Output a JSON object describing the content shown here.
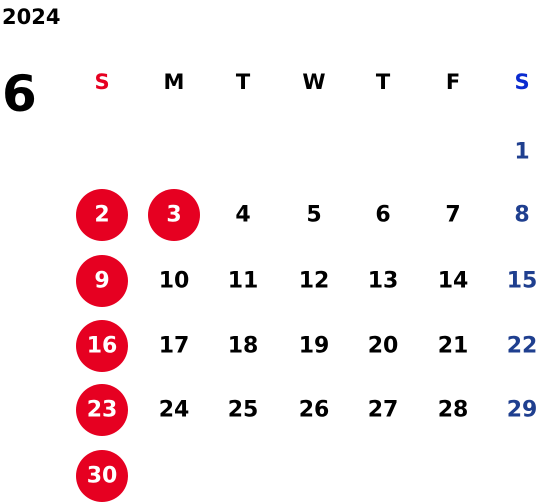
{
  "year": "2024",
  "month": "6",
  "weekdays": [
    "S",
    "M",
    "T",
    "W",
    "T",
    "F",
    "S"
  ],
  "weeks": [
    [
      null,
      null,
      null,
      null,
      null,
      null,
      {
        "day": "1"
      }
    ],
    [
      {
        "day": "2"
      },
      {
        "day": "3",
        "holiday": true
      },
      {
        "day": "4"
      },
      {
        "day": "5"
      },
      {
        "day": "6"
      },
      {
        "day": "7"
      },
      {
        "day": "8"
      }
    ],
    [
      {
        "day": "9"
      },
      {
        "day": "10"
      },
      {
        "day": "11"
      },
      {
        "day": "12"
      },
      {
        "day": "13"
      },
      {
        "day": "14"
      },
      {
        "day": "15"
      }
    ],
    [
      {
        "day": "16"
      },
      {
        "day": "17"
      },
      {
        "day": "18"
      },
      {
        "day": "19"
      },
      {
        "day": "20"
      },
      {
        "day": "21"
      },
      {
        "day": "22"
      }
    ],
    [
      {
        "day": "23"
      },
      {
        "day": "24"
      },
      {
        "day": "25"
      },
      {
        "day": "26"
      },
      {
        "day": "27"
      },
      {
        "day": "28"
      },
      {
        "day": "29"
      }
    ],
    [
      {
        "day": "30"
      },
      null,
      null,
      null,
      null,
      null,
      null
    ]
  ],
  "colors": {
    "sunday_header": "#e60021",
    "saturday_header": "#0a2bd0",
    "saturday": "#1f3f8f",
    "weekday": "#000000",
    "circle": "#e60021",
    "circle_text": "#ffffff"
  }
}
